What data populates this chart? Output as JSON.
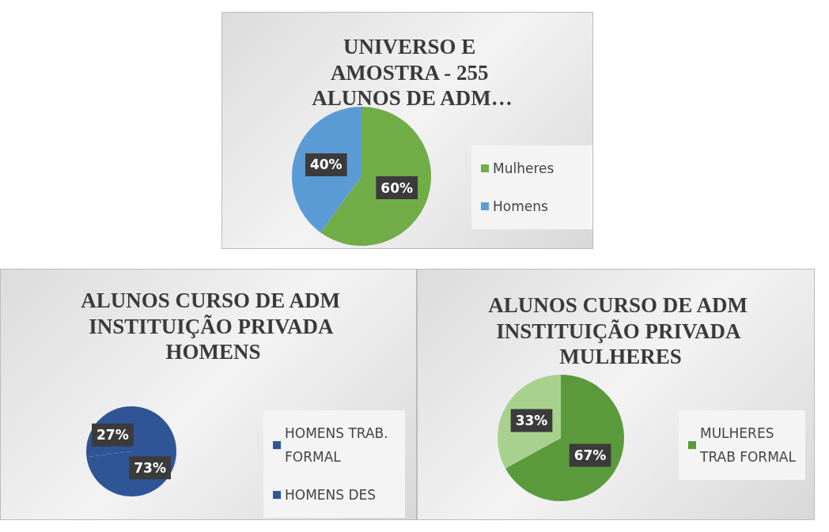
{
  "chart_data": [
    {
      "type": "pie",
      "title": "UNIVERSO E AMOSTRA - 255 ALUNOS DE ADM…",
      "categories": [
        "Mulheres",
        "Homens"
      ],
      "values": [
        60,
        40
      ],
      "colors": [
        "#70ad47",
        "#5b9bd5"
      ],
      "value_labels": [
        "60%",
        "40%"
      ],
      "legend": "right"
    },
    {
      "type": "pie",
      "title": "ALUNOS CURSO DE ADM INSTITUIÇÃO PRIVADA HOMENS",
      "categories": [
        "HOMENS TRAB. FORMAL",
        "HOMENS DES"
      ],
      "values": [
        73,
        27
      ],
      "colors": [
        "#2f5597",
        "#2f5597"
      ],
      "value_labels": [
        "73%",
        "27%"
      ],
      "legend": "right"
    },
    {
      "type": "pie",
      "title": "ALUNOS CURSO DE ADM INSTITUIÇÃO PRIVADA MULHERES",
      "categories": [
        "MULHERES TRAB FORMAL",
        null
      ],
      "values": [
        67,
        33
      ],
      "colors": [
        "#5b9a3a",
        "#a9d18e"
      ],
      "value_labels": [
        "67%",
        "33%"
      ],
      "legend": "right"
    }
  ]
}
